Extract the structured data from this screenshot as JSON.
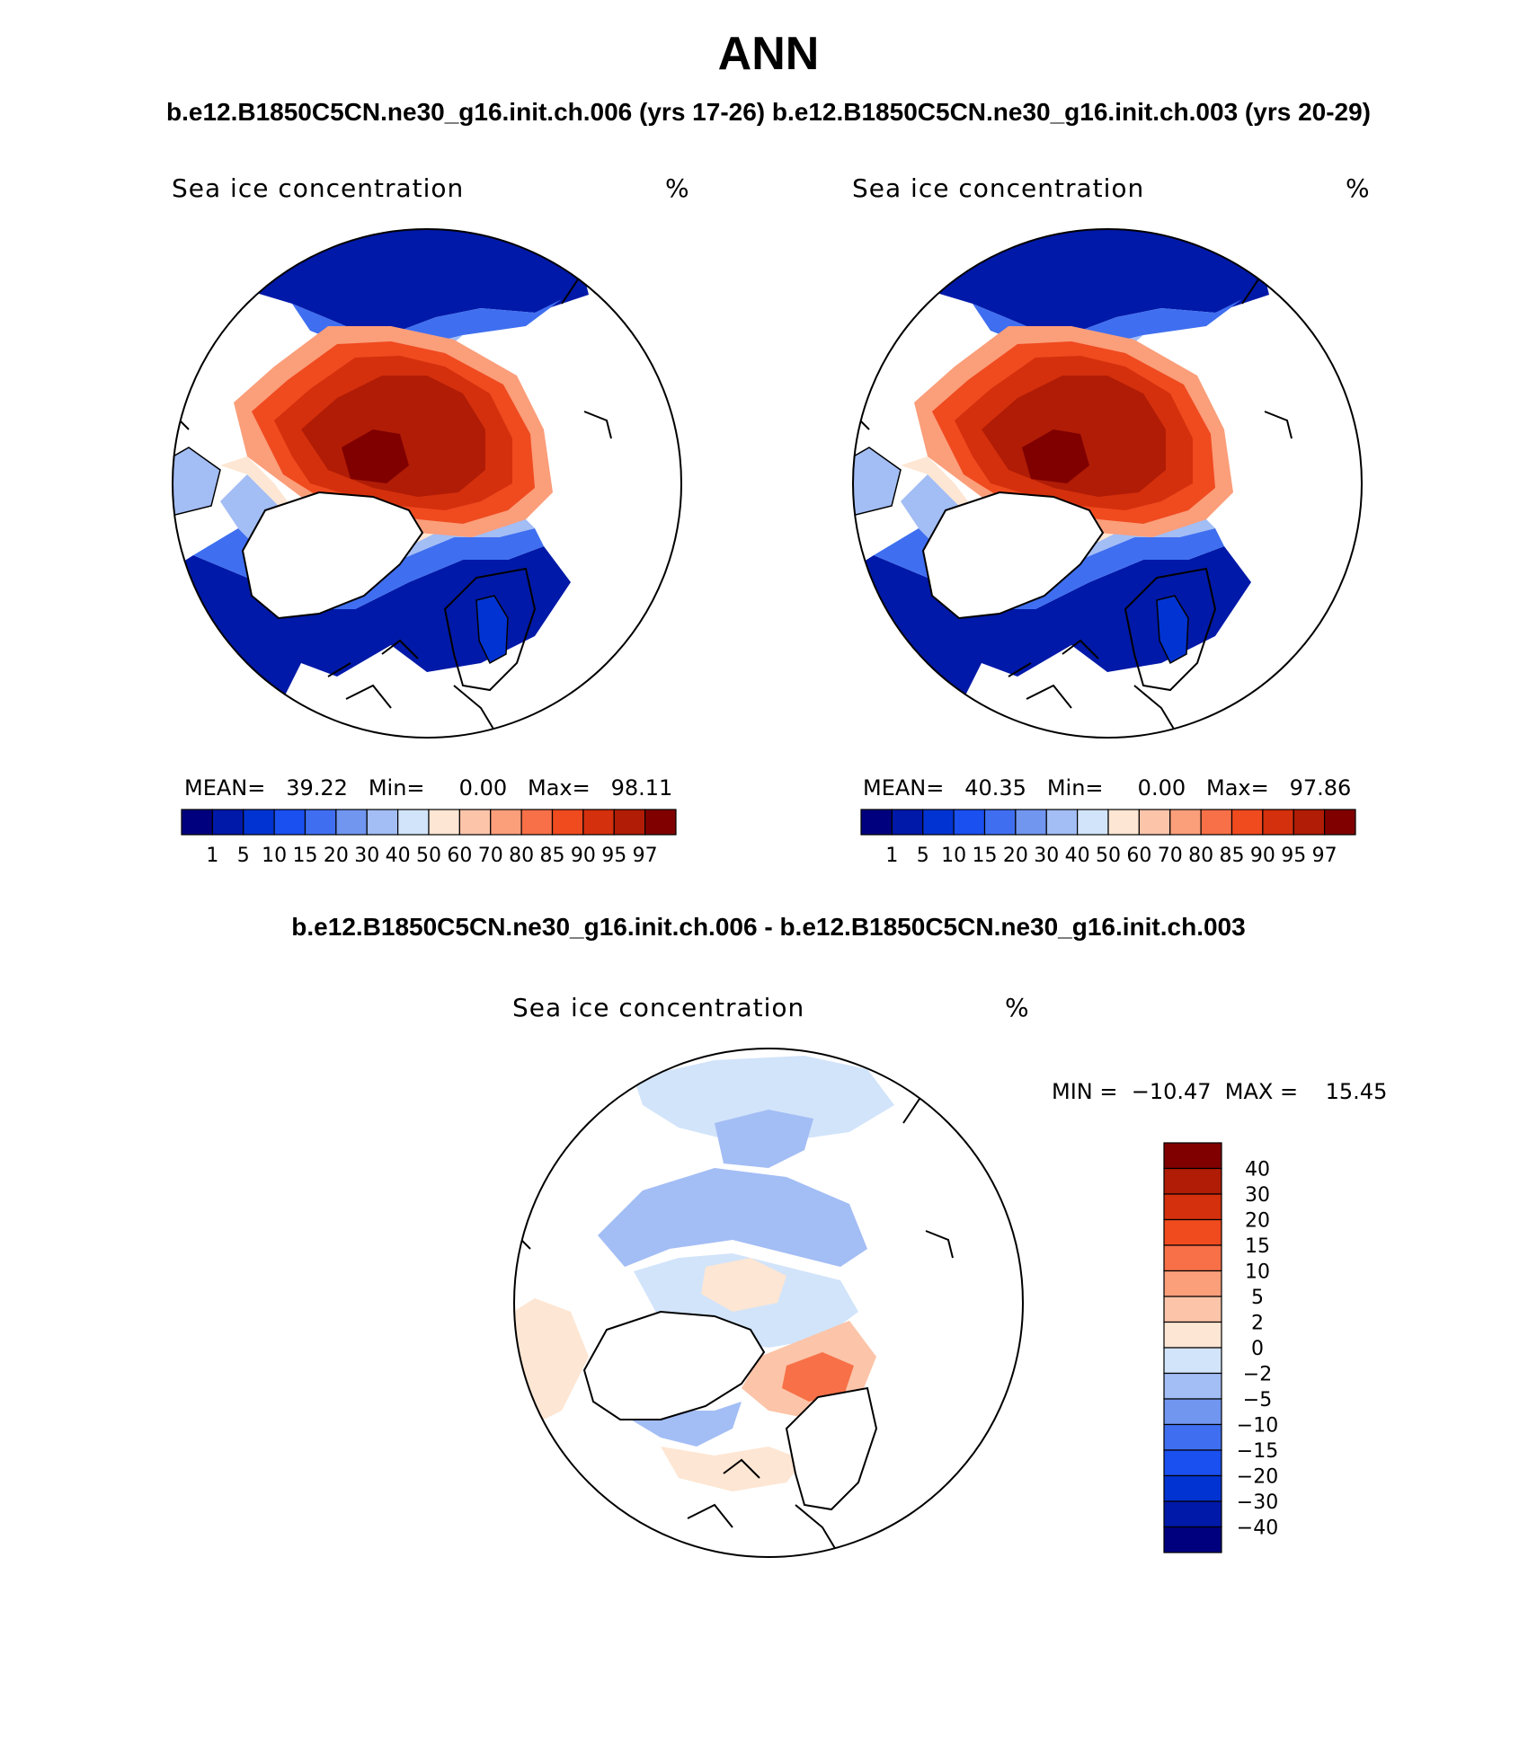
{
  "title": "ANN",
  "subtitle_top": "b.e12.B1850C5CN.ne30_g16.init.ch.006 (yrs 17-26) b.e12.B1850C5CN.ne30_g16.init.ch.003 (yrs 20-29)",
  "subtitle_diff": "b.e12.B1850C5CN.ne30_g16.init.ch.006 - b.e12.B1850C5CN.ne30_g16.init.ch.003",
  "panels": [
    {
      "variable": "Sea ice concentration",
      "units": "%",
      "stats": "MEAN=   39.22   Min=     0.00   Max=   98.11",
      "case": "b.e12.B1850C5CN.ne30_g16.init.ch.006"
    },
    {
      "variable": "Sea ice concentration",
      "units": "%",
      "stats": "MEAN=   40.35   Min=     0.00   Max=   97.86",
      "case": "b.e12.B1850C5CN.ne30_g16.init.ch.003"
    }
  ],
  "diff_panel": {
    "variable": "Sea ice concentration",
    "units": "%",
    "stats": "MIN =  −10.47  MAX =    15.45"
  },
  "colorbar_main": {
    "labels": [
      "1",
      "5",
      "10",
      "15",
      "20",
      "30",
      "40",
      "50",
      "60",
      "70",
      "80",
      "85",
      "90",
      "95",
      "97"
    ],
    "colors": [
      "#00007f",
      "#0019a8",
      "#0033d1",
      "#1a4ff0",
      "#3f6ff0",
      "#7096f0",
      "#a3bdf5",
      "#d2e4fa",
      "#fde6d3",
      "#fcc4a8",
      "#fb9e7a",
      "#f77048",
      "#f04a1f",
      "#d4300d",
      "#b01c06",
      "#800000"
    ]
  },
  "colorbar_diff": {
    "labels": [
      "40",
      "30",
      "20",
      "15",
      "10",
      "5",
      "2",
      "0",
      "−2",
      "−5",
      "−10",
      "−15",
      "−20",
      "−30",
      "−40"
    ],
    "colors": [
      "#800000",
      "#b01c06",
      "#d4300d",
      "#f04a1f",
      "#f77048",
      "#fb9e7a",
      "#fcc4a8",
      "#fde6d3",
      "#d2e4fa",
      "#a3bdf5",
      "#7096f0",
      "#3f6ff0",
      "#1a4ff0",
      "#0033d1",
      "#0019a8",
      "#00007f"
    ]
  }
}
